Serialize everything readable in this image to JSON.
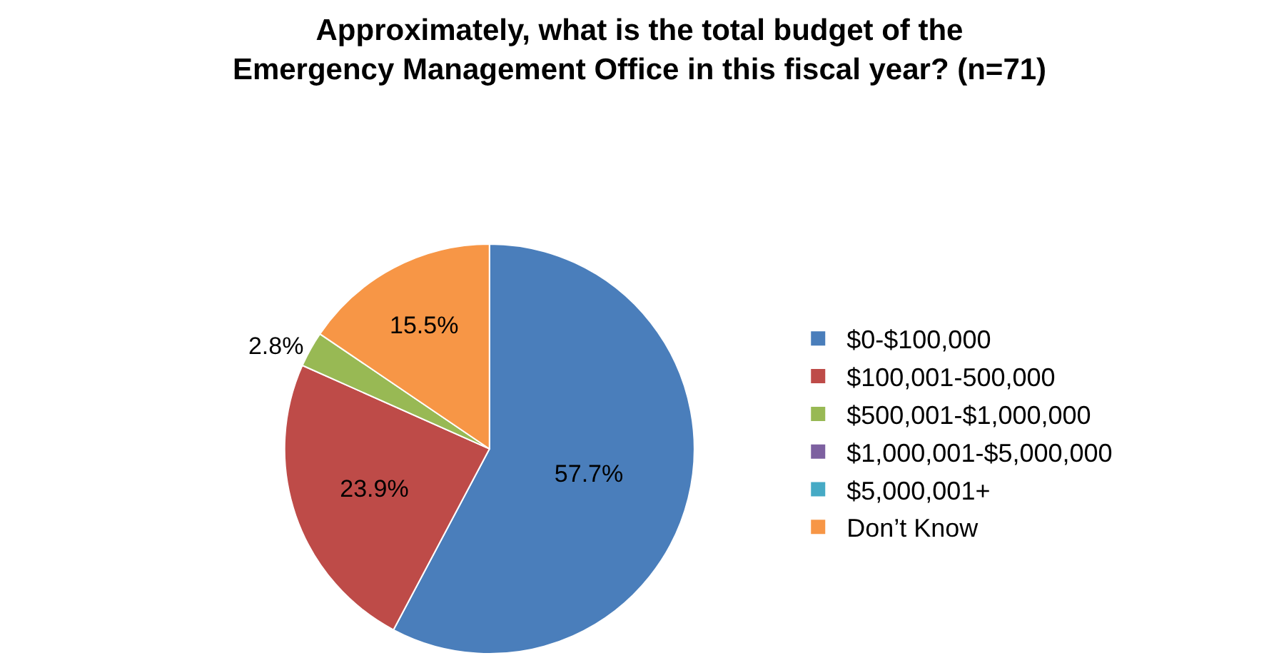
{
  "chart_data": {
    "type": "pie",
    "title": "Approximately, what is the total budget of the\nEmergency Management Office in this fiscal year? (n=71)",
    "categories": [
      "$0-$100,000",
      "$100,001-500,000",
      "$500,001-$1,000,000",
      "$1,000,001-$5,000,000",
      "$5,000,001+",
      "Don’t Know"
    ],
    "values": [
      57.7,
      23.9,
      2.8,
      0,
      0,
      15.5
    ],
    "colors": [
      "#4a7ebb",
      "#be4b48",
      "#98b954",
      "#7d60a0",
      "#46aac5",
      "#f79646"
    ],
    "value_labels": [
      "57.7%",
      "23.9%",
      "2.8%",
      null,
      null,
      "15.5%"
    ],
    "legend": "right"
  }
}
